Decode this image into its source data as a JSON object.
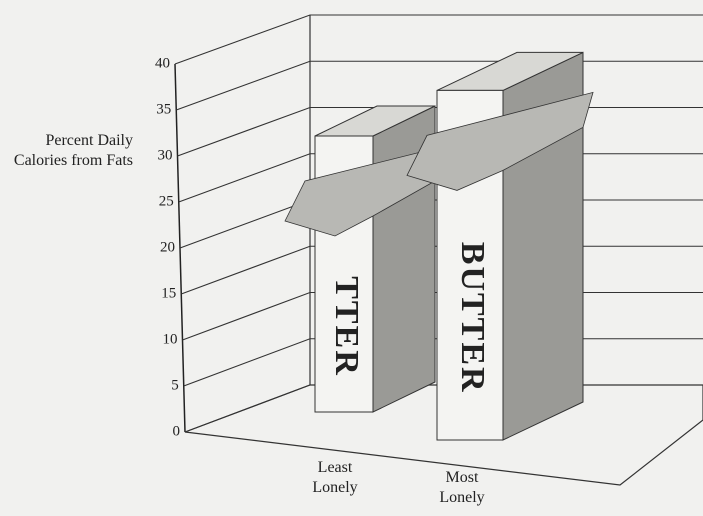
{
  "chart_data": {
    "type": "bar3d",
    "y_label": "Percent Daily Calories from Fats",
    "categories": [
      "Least Lonely",
      "Most Lonely"
    ],
    "values": [
      30,
      38
    ],
    "bar_labels": [
      "TTER",
      "BUTTER"
    ],
    "color": "#f4f4f2",
    "ylim": [
      0,
      40
    ],
    "yticks": [
      0,
      5,
      10,
      15,
      20,
      25,
      30,
      35,
      40
    ],
    "grid": true
  }
}
